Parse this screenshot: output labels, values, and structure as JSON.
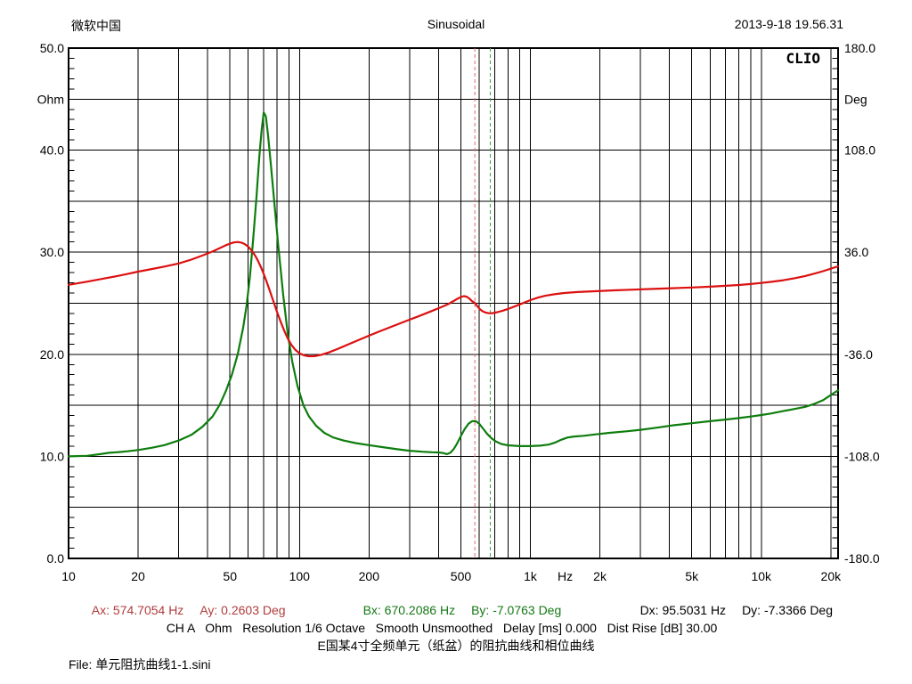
{
  "header": {
    "left": "微软中国",
    "center": "Sinusoidal",
    "right": "2013-9-18 19.56.31"
  },
  "chart_data": {
    "type": "line",
    "watermark": "CLIO",
    "x_axis": {
      "scale": "log",
      "min_hz": 10,
      "max_hz": 20000,
      "unit": "Hz",
      "gridline_freqs": [
        20,
        30,
        40,
        50,
        60,
        70,
        80,
        90,
        100,
        200,
        300,
        400,
        500,
        600,
        700,
        800,
        900,
        1000,
        2000,
        3000,
        4000,
        5000,
        6000,
        7000,
        8000,
        9000,
        10000,
        20000
      ],
      "tick_labels": [
        {
          "f": 10,
          "label": "10"
        },
        {
          "f": 20,
          "label": "20"
        },
        {
          "f": 50,
          "label": "50"
        },
        {
          "f": 100,
          "label": "100"
        },
        {
          "f": 200,
          "label": "200"
        },
        {
          "f": 500,
          "label": "500"
        },
        {
          "f": 1000,
          "label": "1k"
        },
        {
          "f": 1414,
          "label": "Hz"
        },
        {
          "f": 2000,
          "label": "2k"
        },
        {
          "f": 5000,
          "label": "5k"
        },
        {
          "f": 10000,
          "label": "10k"
        },
        {
          "f": 20000,
          "label": "20k"
        }
      ]
    },
    "y_left": {
      "unit": "Ohm",
      "min": 0,
      "max": 50,
      "gridlines_ohm": [
        5,
        10,
        15,
        20,
        25,
        30,
        35,
        40,
        45
      ],
      "labels": [
        {
          "ohm": 50,
          "label": "50.0"
        },
        {
          "ohm": 45,
          "label": "Ohm"
        },
        {
          "ohm": 40,
          "label": "40.0"
        },
        {
          "ohm": 30,
          "label": "30.0"
        },
        {
          "ohm": 20,
          "label": "20.0"
        },
        {
          "ohm": 10,
          "label": "10.0"
        },
        {
          "ohm": 0,
          "label": "0.0"
        }
      ]
    },
    "y_right": {
      "unit": "Deg",
      "min": -180,
      "max": 180,
      "labels": [
        {
          "deg": 180,
          "label": "180.0"
        },
        {
          "deg": 144,
          "label": "Deg"
        },
        {
          "deg": 108,
          "label": "108.0"
        },
        {
          "deg": 36,
          "label": "36.0"
        },
        {
          "deg": -36,
          "label": "-36.0"
        },
        {
          "deg": -108,
          "label": "-108.0"
        },
        {
          "deg": -180,
          "label": "-180.0"
        }
      ]
    },
    "series": [
      {
        "name": "impedance",
        "axis": "left",
        "unit": "Ohm",
        "color": "#0e7d0e",
        "points": [
          [
            10,
            10.0
          ],
          [
            12,
            10.05
          ],
          [
            13.5,
            10.2
          ],
          [
            15,
            10.35
          ],
          [
            16.5,
            10.42
          ],
          [
            18,
            10.5
          ],
          [
            20,
            10.62
          ],
          [
            23,
            10.85
          ],
          [
            26,
            11.1
          ],
          [
            30,
            11.55
          ],
          [
            34,
            12.1
          ],
          [
            38,
            12.9
          ],
          [
            42,
            13.9
          ],
          [
            45,
            15.0
          ],
          [
            48,
            16.4
          ],
          [
            51,
            18.0
          ],
          [
            54,
            20.0
          ],
          [
            57,
            22.6
          ],
          [
            59,
            24.8
          ],
          [
            61,
            27.6
          ],
          [
            63,
            31.2
          ],
          [
            65,
            35.2
          ],
          [
            67,
            39.4
          ],
          [
            68.5,
            41.9
          ],
          [
            70,
            43.7
          ],
          [
            71.5,
            43.3
          ],
          [
            73,
            41.6
          ],
          [
            75,
            38.8
          ],
          [
            78,
            34.6
          ],
          [
            81,
            30.6
          ],
          [
            85,
            25.8
          ],
          [
            89,
            22.0
          ],
          [
            93,
            19.3
          ],
          [
            98,
            16.9
          ],
          [
            104,
            15.0
          ],
          [
            110,
            13.9
          ],
          [
            118,
            13.0
          ],
          [
            128,
            12.3
          ],
          [
            140,
            11.85
          ],
          [
            155,
            11.55
          ],
          [
            175,
            11.3
          ],
          [
            200,
            11.1
          ],
          [
            230,
            10.9
          ],
          [
            265,
            10.7
          ],
          [
            300,
            10.55
          ],
          [
            340,
            10.45
          ],
          [
            375,
            10.4
          ],
          [
            400,
            10.38
          ],
          [
            420,
            10.32
          ],
          [
            435,
            10.22
          ],
          [
            450,
            10.35
          ],
          [
            465,
            10.7
          ],
          [
            480,
            11.2
          ],
          [
            500,
            12.0
          ],
          [
            520,
            12.7
          ],
          [
            540,
            13.2
          ],
          [
            560,
            13.45
          ],
          [
            580,
            13.45
          ],
          [
            600,
            13.2
          ],
          [
            625,
            12.7
          ],
          [
            650,
            12.2
          ],
          [
            680,
            11.75
          ],
          [
            710,
            11.45
          ],
          [
            750,
            11.2
          ],
          [
            800,
            11.08
          ],
          [
            900,
            11.0
          ],
          [
            1000,
            11.0
          ],
          [
            1100,
            11.05
          ],
          [
            1200,
            11.15
          ],
          [
            1280,
            11.35
          ],
          [
            1360,
            11.62
          ],
          [
            1450,
            11.85
          ],
          [
            1550,
            11.95
          ],
          [
            1700,
            12.02
          ],
          [
            1900,
            12.15
          ],
          [
            2200,
            12.3
          ],
          [
            2600,
            12.45
          ],
          [
            3000,
            12.6
          ],
          [
            3500,
            12.8
          ],
          [
            4200,
            13.05
          ],
          [
            5000,
            13.25
          ],
          [
            6000,
            13.45
          ],
          [
            7000,
            13.6
          ],
          [
            8000,
            13.75
          ],
          [
            9000,
            13.9
          ],
          [
            10000,
            14.05
          ],
          [
            11000,
            14.2
          ],
          [
            12500,
            14.45
          ],
          [
            14000,
            14.65
          ],
          [
            15500,
            14.85
          ],
          [
            17000,
            15.15
          ],
          [
            18500,
            15.5
          ],
          [
            20000,
            16.0
          ]
        ]
      },
      {
        "name": "phase",
        "axis": "right",
        "unit": "Deg",
        "color": "#dc1010",
        "points": [
          [
            10,
            13.0
          ],
          [
            12,
            15.2
          ],
          [
            14,
            17.2
          ],
          [
            16,
            19.0
          ],
          [
            18,
            20.7
          ],
          [
            20,
            22.3
          ],
          [
            23,
            24.2
          ],
          [
            26,
            25.9
          ],
          [
            30,
            28.1
          ],
          [
            34,
            30.8
          ],
          [
            38,
            33.7
          ],
          [
            42,
            36.5
          ],
          [
            45,
            38.8
          ],
          [
            48,
            40.9
          ],
          [
            50,
            42.0
          ],
          [
            52,
            42.9
          ],
          [
            54,
            43.2
          ],
          [
            56,
            42.8
          ],
          [
            58,
            41.7
          ],
          [
            60,
            39.9
          ],
          [
            62,
            37.3
          ],
          [
            64,
            34.1
          ],
          [
            66,
            30.2
          ],
          [
            68,
            25.7
          ],
          [
            70,
            20.7
          ],
          [
            72,
            15.3
          ],
          [
            74,
            9.8
          ],
          [
            76,
            4.3
          ],
          [
            78,
            -1.0
          ],
          [
            80,
            -6.2
          ],
          [
            83,
            -13.3
          ],
          [
            86,
            -19.6
          ],
          [
            89,
            -24.9
          ],
          [
            92,
            -29.1
          ],
          [
            96,
            -32.9
          ],
          [
            100,
            -35.3
          ],
          [
            105,
            -36.8
          ],
          [
            110,
            -37.4
          ],
          [
            116,
            -37.3
          ],
          [
            124,
            -36.4
          ],
          [
            134,
            -34.7
          ],
          [
            146,
            -32.3
          ],
          [
            160,
            -29.5
          ],
          [
            180,
            -26.0
          ],
          [
            200,
            -22.9
          ],
          [
            225,
            -19.5
          ],
          [
            255,
            -16.0
          ],
          [
            290,
            -12.5
          ],
          [
            330,
            -9.0
          ],
          [
            370,
            -5.8
          ],
          [
            410,
            -2.8
          ],
          [
            440,
            -0.6
          ],
          [
            465,
            1.6
          ],
          [
            485,
            3.3
          ],
          [
            500,
            4.4
          ],
          [
            515,
            5.0
          ],
          [
            530,
            4.6
          ],
          [
            545,
            3.2
          ],
          [
            560,
            1.4
          ],
          [
            574.7,
            0.26
          ],
          [
            590,
            -2.2
          ],
          [
            605,
            -4.2
          ],
          [
            620,
            -5.6
          ],
          [
            640,
            -6.6
          ],
          [
            660,
            -7.0
          ],
          [
            670.2,
            -7.08
          ],
          [
            690,
            -6.9
          ],
          [
            720,
            -6.3
          ],
          [
            760,
            -5.2
          ],
          [
            810,
            -3.7
          ],
          [
            860,
            -2.1
          ],
          [
            920,
            -0.2
          ],
          [
            1000,
            2.2
          ],
          [
            1080,
            4.0
          ],
          [
            1160,
            5.3
          ],
          [
            1260,
            6.3
          ],
          [
            1400,
            7.2
          ],
          [
            1600,
            7.9
          ],
          [
            1900,
            8.5
          ],
          [
            2300,
            9.1
          ],
          [
            2800,
            9.6
          ],
          [
            3400,
            10.1
          ],
          [
            4100,
            10.6
          ],
          [
            5000,
            11.1
          ],
          [
            6000,
            11.7
          ],
          [
            7000,
            12.3
          ],
          [
            8000,
            12.9
          ],
          [
            9000,
            13.6
          ],
          [
            10000,
            14.3
          ],
          [
            11000,
            15.1
          ],
          [
            12500,
            16.3
          ],
          [
            14000,
            17.7
          ],
          [
            15500,
            19.2
          ],
          [
            17000,
            20.9
          ],
          [
            18500,
            22.6
          ],
          [
            20000,
            24.4
          ]
        ]
      }
    ],
    "cursors": [
      {
        "name": "A",
        "freq_hz": 574.7054,
        "line_color": "#e06666"
      },
      {
        "name": "B",
        "freq_hz": 670.2086,
        "line_color": "#4a9e4a"
      }
    ],
    "grid_color": "#000000"
  },
  "readouts": {
    "a": {
      "x": "Ax: 574.7054 Hz",
      "y": "Ay: 0.2603 Deg",
      "color": "#b13c3c"
    },
    "b": {
      "x": "Bx: 670.2086 Hz",
      "y": "By: -7.0763 Deg",
      "color": "#157815"
    },
    "d": {
      "x": "Dx: 95.5031 Hz",
      "y": "Dy: -7.3366 Deg",
      "color": "#000000"
    }
  },
  "settings_segments": [
    "CH A",
    "Ohm",
    "Resolution 1/6 Octave",
    "Smooth Unsmoothed",
    "Delay [ms] 0.000",
    "Dist Rise [dB] 30.00"
  ],
  "caption": "E国某4寸全频单元（纸盆）的阻抗曲线和相位曲线",
  "file_line": "File: 单元阻抗曲线1-1.sini"
}
